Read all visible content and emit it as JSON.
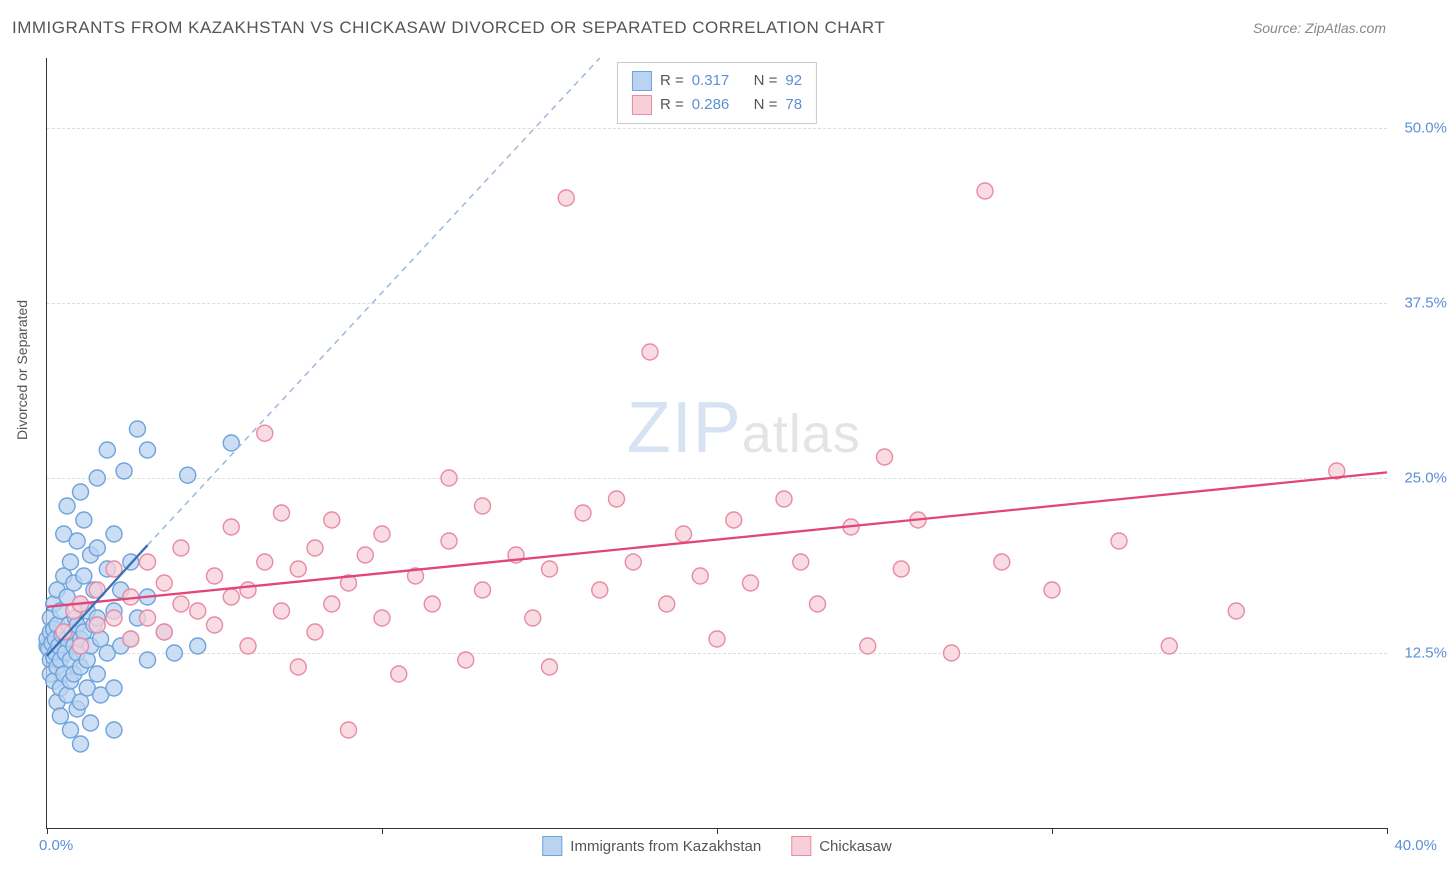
{
  "title": "IMMIGRANTS FROM KAZAKHSTAN VS CHICKASAW DIVORCED OR SEPARATED CORRELATION CHART",
  "source": "Source: ZipAtlas.com",
  "watermark_1": "ZIP",
  "watermark_2": "atlas",
  "ylabel": "Divorced or Separated",
  "chart": {
    "type": "scatter",
    "xlim": [
      0,
      40
    ],
    "ylim": [
      0,
      55
    ],
    "x_ticks": [
      0,
      10,
      20,
      30,
      40
    ],
    "x_tick_labels": {
      "left": "0.0%",
      "right": "40.0%"
    },
    "y_grid": [
      12.5,
      25.0,
      37.5,
      50.0
    ],
    "y_tick_labels": [
      "12.5%",
      "25.0%",
      "37.5%",
      "50.0%"
    ],
    "grid_color": "#dddddd",
    "background_color": "#ffffff",
    "axis_label_color": "#5b8fd6",
    "marker_radius": 8,
    "marker_stroke_width": 1.4,
    "series": [
      {
        "name": "Immigrants from Kazakhstan",
        "color_fill": "#b9d3f0",
        "color_stroke": "#6fa3dc",
        "r_label": "R =",
        "r_value": "0.317",
        "n_label": "N =",
        "n_value": "92",
        "trend": {
          "x1": 0,
          "y1": 12.3,
          "x2": 3.0,
          "y2": 20.2,
          "dash_ext_x": 16.5,
          "dash_ext_y": 55.0,
          "color": "#3a6fb7",
          "width": 2.3
        },
        "points": [
          [
            0.0,
            13.0
          ],
          [
            0.0,
            13.5
          ],
          [
            0.05,
            12.8
          ],
          [
            0.1,
            14.0
          ],
          [
            0.1,
            12.0
          ],
          [
            0.1,
            11.0
          ],
          [
            0.1,
            15.0
          ],
          [
            0.15,
            13.2
          ],
          [
            0.2,
            14.2
          ],
          [
            0.2,
            12.2
          ],
          [
            0.2,
            10.5
          ],
          [
            0.2,
            16.0
          ],
          [
            0.25,
            13.5
          ],
          [
            0.25,
            12.5
          ],
          [
            0.3,
            9.0
          ],
          [
            0.3,
            11.5
          ],
          [
            0.3,
            14.5
          ],
          [
            0.3,
            17.0
          ],
          [
            0.35,
            13.0
          ],
          [
            0.4,
            15.5
          ],
          [
            0.4,
            12.0
          ],
          [
            0.4,
            10.0
          ],
          [
            0.4,
            8.0
          ],
          [
            0.45,
            13.8
          ],
          [
            0.5,
            18.0
          ],
          [
            0.5,
            14.0
          ],
          [
            0.5,
            11.0
          ],
          [
            0.5,
            21.0
          ],
          [
            0.55,
            12.5
          ],
          [
            0.6,
            16.5
          ],
          [
            0.6,
            13.5
          ],
          [
            0.6,
            9.5
          ],
          [
            0.6,
            23.0
          ],
          [
            0.65,
            14.5
          ],
          [
            0.7,
            19.0
          ],
          [
            0.7,
            12.0
          ],
          [
            0.7,
            10.5
          ],
          [
            0.7,
            7.0
          ],
          [
            0.75,
            14.0
          ],
          [
            0.8,
            17.5
          ],
          [
            0.8,
            13.0
          ],
          [
            0.8,
            11.0
          ],
          [
            0.85,
            15.0
          ],
          [
            0.9,
            20.5
          ],
          [
            0.9,
            14.5
          ],
          [
            0.9,
            12.5
          ],
          [
            0.9,
            8.5
          ],
          [
            1.0,
            24.0
          ],
          [
            1.0,
            16.0
          ],
          [
            1.0,
            13.5
          ],
          [
            1.0,
            11.5
          ],
          [
            1.0,
            9.0
          ],
          [
            1.0,
            6.0
          ],
          [
            1.1,
            22.0
          ],
          [
            1.1,
            18.0
          ],
          [
            1.1,
            14.0
          ],
          [
            1.2,
            15.5
          ],
          [
            1.2,
            12.0
          ],
          [
            1.2,
            10.0
          ],
          [
            1.3,
            19.5
          ],
          [
            1.3,
            13.0
          ],
          [
            1.3,
            7.5
          ],
          [
            1.4,
            17.0
          ],
          [
            1.4,
            14.5
          ],
          [
            1.5,
            25.0
          ],
          [
            1.5,
            20.0
          ],
          [
            1.5,
            15.0
          ],
          [
            1.5,
            11.0
          ],
          [
            1.6,
            13.5
          ],
          [
            1.6,
            9.5
          ],
          [
            1.8,
            27.0
          ],
          [
            1.8,
            18.5
          ],
          [
            1.8,
            12.5
          ],
          [
            2.0,
            21.0
          ],
          [
            2.0,
            15.5
          ],
          [
            2.0,
            10.0
          ],
          [
            2.0,
            7.0
          ],
          [
            2.2,
            17.0
          ],
          [
            2.2,
            13.0
          ],
          [
            2.3,
            25.5
          ],
          [
            2.5,
            19.0
          ],
          [
            2.5,
            13.5
          ],
          [
            2.7,
            28.5
          ],
          [
            2.7,
            15.0
          ],
          [
            3.0,
            27.0
          ],
          [
            3.0,
            16.5
          ],
          [
            3.0,
            12.0
          ],
          [
            3.5,
            14.0
          ],
          [
            3.8,
            12.5
          ],
          [
            4.2,
            25.2
          ],
          [
            4.5,
            13.0
          ],
          [
            5.5,
            27.5
          ]
        ]
      },
      {
        "name": "Chickasaw",
        "color_fill": "#f7cfd9",
        "color_stroke": "#e88ba5",
        "r_label": "R =",
        "r_value": "0.286",
        "n_label": "N =",
        "n_value": "78",
        "trend": {
          "x1": 0,
          "y1": 15.8,
          "x2": 40,
          "y2": 25.4,
          "color": "#e0467a",
          "width": 2.3
        },
        "points": [
          [
            0.5,
            14.0
          ],
          [
            0.8,
            15.5
          ],
          [
            1.0,
            13.0
          ],
          [
            1.0,
            16.0
          ],
          [
            1.5,
            14.5
          ],
          [
            1.5,
            17.0
          ],
          [
            2.0,
            15.0
          ],
          [
            2.0,
            18.5
          ],
          [
            2.5,
            13.5
          ],
          [
            2.5,
            16.5
          ],
          [
            3.0,
            15.0
          ],
          [
            3.0,
            19.0
          ],
          [
            3.5,
            14.0
          ],
          [
            3.5,
            17.5
          ],
          [
            4.0,
            16.0
          ],
          [
            4.0,
            20.0
          ],
          [
            4.5,
            15.5
          ],
          [
            5.0,
            18.0
          ],
          [
            5.0,
            14.5
          ],
          [
            5.5,
            21.5
          ],
          [
            5.5,
            16.5
          ],
          [
            6.0,
            17.0
          ],
          [
            6.0,
            13.0
          ],
          [
            6.5,
            28.2
          ],
          [
            6.5,
            19.0
          ],
          [
            7.0,
            22.5
          ],
          [
            7.0,
            15.5
          ],
          [
            7.5,
            11.5
          ],
          [
            7.5,
            18.5
          ],
          [
            8.0,
            20.0
          ],
          [
            8.0,
            14.0
          ],
          [
            8.5,
            22.0
          ],
          [
            8.5,
            16.0
          ],
          [
            9.0,
            7.0
          ],
          [
            9.0,
            17.5
          ],
          [
            9.5,
            19.5
          ],
          [
            10.0,
            15.0
          ],
          [
            10.0,
            21.0
          ],
          [
            10.5,
            11.0
          ],
          [
            11.0,
            18.0
          ],
          [
            11.5,
            16.0
          ],
          [
            12.0,
            20.5
          ],
          [
            12.0,
            25.0
          ],
          [
            12.5,
            12.0
          ],
          [
            13.0,
            23.0
          ],
          [
            13.0,
            17.0
          ],
          [
            14.0,
            19.5
          ],
          [
            14.5,
            15.0
          ],
          [
            15.0,
            18.5
          ],
          [
            15.0,
            11.5
          ],
          [
            15.5,
            45.0
          ],
          [
            16.0,
            22.5
          ],
          [
            16.5,
            17.0
          ],
          [
            17.0,
            23.5
          ],
          [
            17.5,
            19.0
          ],
          [
            18.0,
            34.0
          ],
          [
            18.5,
            16.0
          ],
          [
            19.0,
            21.0
          ],
          [
            19.5,
            18.0
          ],
          [
            20.0,
            13.5
          ],
          [
            20.5,
            22.0
          ],
          [
            21.0,
            17.5
          ],
          [
            22.0,
            23.5
          ],
          [
            22.5,
            19.0
          ],
          [
            23.0,
            16.0
          ],
          [
            24.0,
            21.5
          ],
          [
            24.5,
            13.0
          ],
          [
            25.0,
            26.5
          ],
          [
            25.5,
            18.5
          ],
          [
            26.0,
            22.0
          ],
          [
            27.0,
            12.5
          ],
          [
            28.0,
            45.5
          ],
          [
            28.5,
            19.0
          ],
          [
            30.0,
            17.0
          ],
          [
            32.0,
            20.5
          ],
          [
            33.5,
            13.0
          ],
          [
            35.5,
            15.5
          ],
          [
            38.5,
            25.5
          ]
        ]
      }
    ]
  }
}
